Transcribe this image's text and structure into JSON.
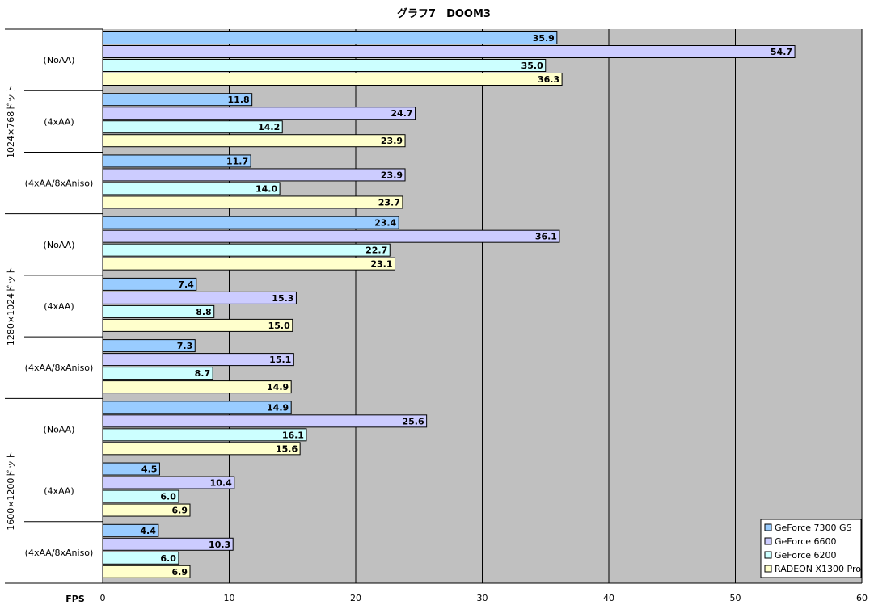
{
  "chart_data": {
    "type": "bar",
    "orientation": "horizontal",
    "title": "グラフ7　DOOM3",
    "xlabel": "FPS",
    "xlim": [
      0,
      60
    ],
    "xticks": [
      0,
      10,
      20,
      30,
      40,
      50,
      60
    ],
    "grid": true,
    "legend_position": "bottom-right",
    "groups": [
      "1024×768ドット",
      "1280×1024ドット",
      "1600×1200ドット"
    ],
    "categories": [
      "(NoAA)",
      "(4xAA)",
      "(4xAA/8xAniso)"
    ],
    "series": [
      {
        "name": "GeForce 7300 GS",
        "color": "#99ccff",
        "values": [
          [
            35.9,
            11.8,
            11.7
          ],
          [
            23.4,
            7.4,
            7.3
          ],
          [
            14.9,
            4.5,
            4.4
          ]
        ]
      },
      {
        "name": "GeForce 6600",
        "color": "#ccccff",
        "values": [
          [
            54.7,
            24.7,
            23.9
          ],
          [
            36.1,
            15.3,
            15.1
          ],
          [
            25.6,
            10.4,
            10.3
          ]
        ]
      },
      {
        "name": "GeForce 6200",
        "color": "#ccffff",
        "values": [
          [
            35.0,
            14.2,
            14.0
          ],
          [
            22.7,
            8.8,
            8.7
          ],
          [
            16.1,
            6.0,
            6.0
          ]
        ]
      },
      {
        "name": "RADEON X1300 Pro",
        "color": "#ffffcc",
        "values": [
          [
            36.3,
            23.9,
            23.7
          ],
          [
            23.1,
            15.0,
            14.9
          ],
          [
            15.6,
            6.9,
            6.9
          ]
        ]
      }
    ],
    "plot_background": "#c0c0c0"
  }
}
